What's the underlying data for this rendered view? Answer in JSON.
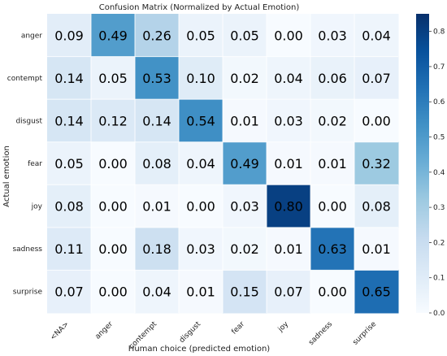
{
  "chart_data": {
    "type": "heatmap",
    "title": "Confusion Matrix (Normalized by Actual Emotion)",
    "xlabel": "Human choice (predicted emotion)",
    "ylabel": "Actual emotion",
    "x_categories": [
      "<NA>",
      "anger",
      "contempt",
      "disgust",
      "fear",
      "joy",
      "sadness",
      "surprise"
    ],
    "y_categories": [
      "anger",
      "contempt",
      "disgust",
      "fear",
      "joy",
      "sadness",
      "surprise"
    ],
    "values": [
      [
        "0.09",
        "0.49",
        "0.26",
        "0.05",
        "0.05",
        "0.00",
        "0.03",
        "0.04"
      ],
      [
        "0.14",
        "0.05",
        "0.53",
        "0.10",
        "0.02",
        "0.04",
        "0.06",
        "0.07"
      ],
      [
        "0.14",
        "0.12",
        "0.14",
        "0.54",
        "0.01",
        "0.03",
        "0.02",
        "0.00"
      ],
      [
        "0.05",
        "0.00",
        "0.08",
        "0.04",
        "0.49",
        "0.01",
        "0.01",
        "0.32"
      ],
      [
        "0.08",
        "0.00",
        "0.01",
        "0.00",
        "0.03",
        "0.80",
        "0.00",
        "0.08"
      ],
      [
        "0.11",
        "0.00",
        "0.18",
        "0.03",
        "0.02",
        "0.01",
        "0.63",
        "0.01"
      ],
      [
        "0.07",
        "0.00",
        "0.04",
        "0.01",
        "0.15",
        "0.07",
        "0.00",
        "0.65"
      ]
    ],
    "colorbar": {
      "range": [
        0,
        0.85
      ],
      "ticks": [
        "0.0",
        "0.1",
        "0.2",
        "0.3",
        "0.4",
        "0.5",
        "0.6",
        "0.7",
        "0.8"
      ],
      "colormap": "Blues"
    },
    "grid": true
  }
}
